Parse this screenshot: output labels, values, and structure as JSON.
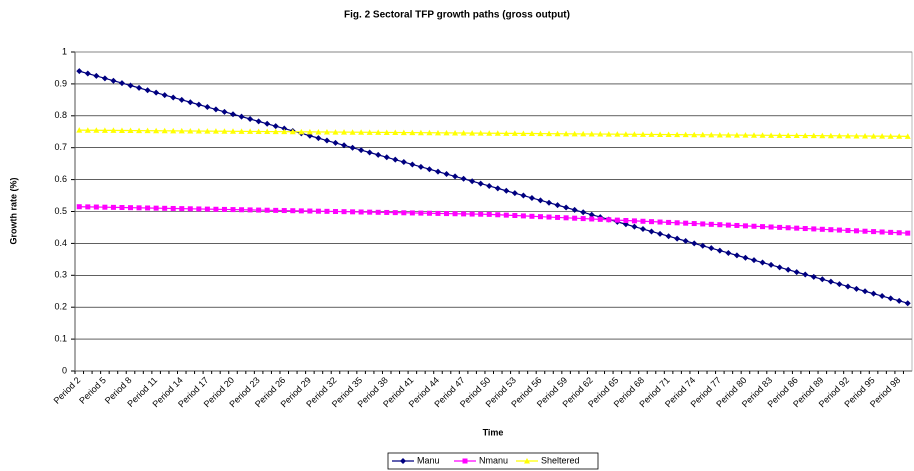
{
  "chart_data": {
    "type": "line",
    "title": "Fig. 2 Sectoral TFP growth paths (gross output)",
    "x_label": "Time",
    "y_label": "Growth rate (%)",
    "categories": [
      "Period 2",
      null,
      null,
      "Period 5",
      null,
      null,
      "Period 8",
      null,
      null,
      "Period 11",
      null,
      null,
      "Period 14",
      null,
      null,
      "Period 17",
      null,
      null,
      "Period 20",
      null,
      null,
      "Period 23",
      null,
      null,
      "Period 26",
      null,
      null,
      "Period 29",
      null,
      null,
      "Period 32",
      null,
      null,
      "Period 35",
      null,
      null,
      "Period 38",
      null,
      null,
      "Period 41",
      null,
      null,
      "Period 44",
      null,
      null,
      "Period 47",
      null,
      null,
      "Period 50",
      null,
      null,
      "Period 53",
      null,
      null,
      "Period 56",
      null,
      null,
      "Period 59",
      null,
      null,
      "Period 62",
      null,
      null,
      "Period 65",
      null,
      null,
      "Period 68",
      null,
      null,
      "Period 71",
      null,
      null,
      "Period 74",
      null,
      null,
      "Period 77",
      null,
      null,
      "Period 80",
      null,
      null,
      "Period 83",
      null,
      null,
      "Period 86",
      null,
      null,
      "Period 89",
      null,
      null,
      "Period 92",
      null,
      null,
      "Period 95",
      null,
      null,
      "Period 98",
      null
    ],
    "series": [
      {
        "name": "Manu",
        "color": "#000080",
        "marker": "diamond",
        "values": [
          0.94,
          0.9325,
          0.925,
          0.9175,
          0.91,
          0.9025,
          0.895,
          0.8875,
          0.88,
          0.8725,
          0.865,
          0.8575,
          0.85,
          0.8425,
          0.835,
          0.8275,
          0.82,
          0.8125,
          0.805,
          0.7975,
          0.79,
          0.7825,
          0.775,
          0.7675,
          0.76,
          0.7525,
          0.745,
          0.7375,
          0.73,
          0.7225,
          0.715,
          0.7075,
          0.7,
          0.6925,
          0.685,
          0.6775,
          0.67,
          0.6625,
          0.655,
          0.6475,
          0.64,
          0.6325,
          0.625,
          0.6175,
          0.61,
          0.6025,
          0.595,
          0.5875,
          0.58,
          0.5725,
          0.565,
          0.5575,
          0.55,
          0.5425,
          0.535,
          0.5275,
          0.52,
          0.5125,
          0.505,
          0.4975,
          0.49,
          0.4825,
          0.475,
          0.4675,
          0.46,
          0.4525,
          0.445,
          0.4375,
          0.43,
          0.4225,
          0.415,
          0.4075,
          0.4,
          0.3925,
          0.385,
          0.3775,
          0.37,
          0.3625,
          0.355,
          0.3475,
          0.34,
          0.3325,
          0.325,
          0.3175,
          0.31,
          0.3025,
          0.295,
          0.2875,
          0.28,
          0.2725,
          0.265,
          0.2575,
          0.25,
          0.2425,
          0.235,
          0.2275,
          0.22,
          0.2125
        ]
      },
      {
        "name": "Nmanu",
        "color": "#FF00FF",
        "marker": "square",
        "values": [
          0.515,
          0.5145,
          0.514,
          0.5135,
          0.513,
          0.5125,
          0.512,
          0.5115,
          0.511,
          0.5105,
          0.51,
          0.5095,
          0.509,
          0.5085,
          0.508,
          0.5075,
          0.507,
          0.5065,
          0.506,
          0.5055,
          0.505,
          0.5045,
          0.504,
          0.5035,
          0.503,
          0.5025,
          0.502,
          0.5015,
          0.501,
          0.5005,
          0.5,
          0.4995,
          0.499,
          0.4985,
          0.498,
          0.4975,
          0.497,
          0.4965,
          0.496,
          0.4955,
          0.495,
          0.4945,
          0.494,
          0.4935,
          0.493,
          0.4925,
          0.492,
          0.4915,
          0.491,
          0.4898,
          0.4886,
          0.4874,
          0.4862,
          0.485,
          0.4838,
          0.4826,
          0.4814,
          0.4802,
          0.479,
          0.4778,
          0.4766,
          0.4754,
          0.4742,
          0.473,
          0.4718,
          0.4706,
          0.4694,
          0.4682,
          0.467,
          0.4658,
          0.4646,
          0.4634,
          0.4622,
          0.461,
          0.4598,
          0.4586,
          0.4574,
          0.4562,
          0.455,
          0.4538,
          0.4526,
          0.4514,
          0.4502,
          0.449,
          0.4478,
          0.4466,
          0.4454,
          0.4442,
          0.443,
          0.4418,
          0.4406,
          0.4394,
          0.4382,
          0.437,
          0.4358,
          0.4346,
          0.4334,
          0.4322
        ]
      },
      {
        "name": "Sheltered",
        "color": "#FFFF00",
        "marker": "triangle",
        "values": [
          0.755,
          0.7548,
          0.7546,
          0.7544,
          0.7542,
          0.754,
          0.7538,
          0.7536,
          0.7534,
          0.7532,
          0.753,
          0.7528,
          0.7526,
          0.7524,
          0.7522,
          0.752,
          0.7518,
          0.7516,
          0.7514,
          0.7512,
          0.751,
          0.7508,
          0.7506,
          0.7504,
          0.7502,
          0.75,
          0.7498,
          0.7496,
          0.7494,
          0.7492,
          0.749,
          0.7488,
          0.7486,
          0.7484,
          0.7482,
          0.748,
          0.7478,
          0.7476,
          0.7474,
          0.7472,
          0.747,
          0.7468,
          0.7466,
          0.7464,
          0.7462,
          0.746,
          0.7458,
          0.7456,
          0.7454,
          0.7452,
          0.745,
          0.7448,
          0.7446,
          0.7444,
          0.7442,
          0.744,
          0.7438,
          0.7436,
          0.7434,
          0.7432,
          0.743,
          0.7428,
          0.7426,
          0.7424,
          0.7422,
          0.742,
          0.7418,
          0.7416,
          0.7414,
          0.7412,
          0.741,
          0.7408,
          0.7406,
          0.7404,
          0.7402,
          0.74,
          0.7398,
          0.7396,
          0.7394,
          0.7392,
          0.739,
          0.7388,
          0.7386,
          0.7384,
          0.7382,
          0.738,
          0.7378,
          0.7376,
          0.7374,
          0.7372,
          0.737,
          0.7368,
          0.7366,
          0.7364,
          0.7362,
          0.736,
          0.7358,
          0.7356
        ]
      }
    ],
    "ylim": [
      0,
      1
    ],
    "yticks": [
      0,
      0.1,
      0.2,
      0.3,
      0.4,
      0.5,
      0.6,
      0.7,
      0.8,
      0.9,
      1
    ],
    "grid": true,
    "legend": "bottom"
  }
}
